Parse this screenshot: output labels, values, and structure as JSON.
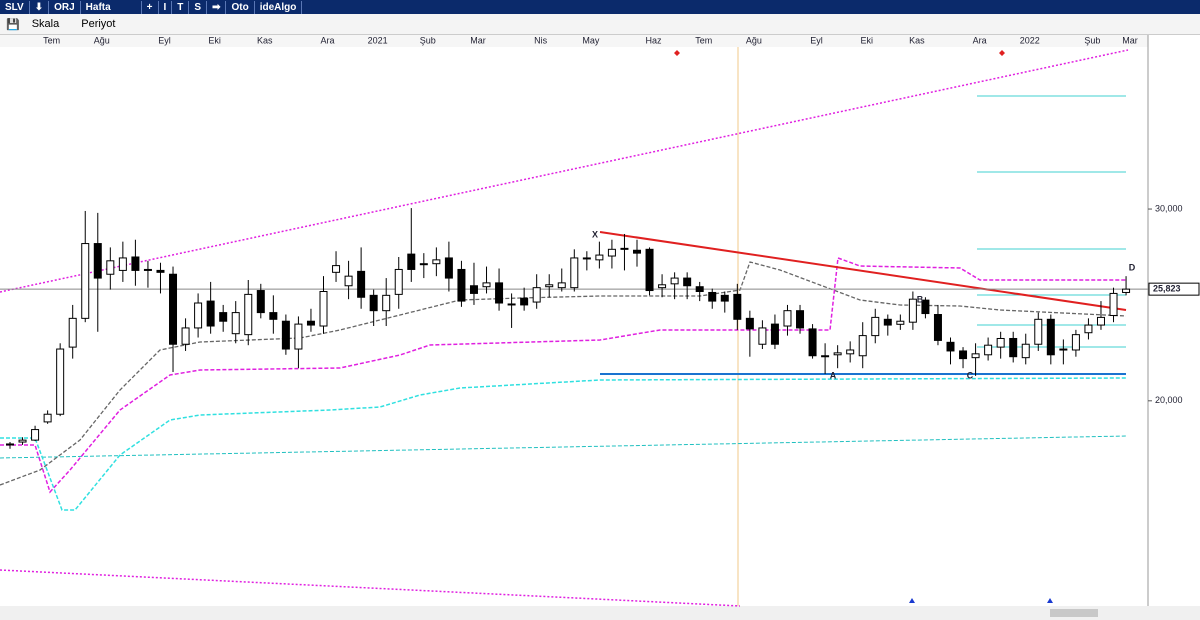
{
  "toolbar": {
    "symbol": "SLV",
    "mode": "ORJ",
    "period": "Hafta",
    "buttons": [
      "+",
      "I",
      "T",
      "S"
    ],
    "auto": "Oto",
    "brand": "ideAlgo"
  },
  "menu": [
    "Skala",
    "Periyot"
  ],
  "chart_data": {
    "type": "candlestick",
    "categories": [
      null,
      null,
      null,
      "Tem",
      null,
      null,
      null,
      "Ağu",
      null,
      null,
      null,
      null,
      "Eyl",
      null,
      null,
      null,
      "Eki",
      null,
      null,
      null,
      "Kas",
      null,
      null,
      null,
      null,
      "Ara",
      null,
      null,
      null,
      "2021",
      null,
      null,
      null,
      "Şub",
      null,
      null,
      null,
      "Mar",
      null,
      null,
      null,
      null,
      "Nis",
      null,
      null,
      null,
      "May",
      null,
      null,
      null,
      null,
      "Haz",
      null,
      null,
      null,
      "Tem",
      null,
      null,
      null,
      "Ağu",
      null,
      null,
      null,
      null,
      "Eyl",
      null,
      null,
      null,
      "Eki",
      null,
      null,
      null,
      "Kas",
      null,
      null,
      null,
      null,
      "Ara",
      null,
      null,
      null,
      "2022",
      null,
      null,
      null,
      null,
      "Şub",
      null,
      null,
      "Mar"
    ],
    "open": [
      17700,
      17850,
      17950,
      18900,
      19300,
      22800,
      24300,
      28200,
      26600,
      26800,
      27500,
      26850,
      26800,
      26600,
      22950,
      23800,
      25200,
      24600,
      23500,
      23450,
      25750,
      24600,
      24150,
      22700,
      24150,
      23900,
      26700,
      26000,
      26750,
      25500,
      24700,
      25550,
      27650,
      27150,
      27150,
      27450,
      26850,
      26000,
      25950,
      26150,
      25000,
      25350,
      25150,
      25950,
      25900,
      25900,
      27400,
      27350,
      27550,
      27900,
      27850,
      27900,
      25900,
      26100,
      26400,
      25950,
      25650,
      25500,
      25550,
      24300,
      22950,
      24000,
      23900,
      24700,
      23750,
      22350,
      22400,
      22450,
      22350,
      23400,
      24250,
      23990,
      24100,
      25250,
      24500,
      23050,
      22600,
      22250,
      22400,
      22800,
      23250,
      22250,
      22950,
      24250,
      22650,
      22650,
      23550,
      23950,
      24450,
      25650
    ],
    "high": [
      17850,
      18100,
      18700,
      19500,
      23000,
      25000,
      29900,
      29800,
      28000,
      28300,
      28400,
      27300,
      27200,
      27000,
      24300,
      25600,
      26200,
      25000,
      25200,
      26300,
      26100,
      25500,
      24500,
      24400,
      24800,
      26500,
      27800,
      27300,
      28000,
      25800,
      26400,
      27500,
      30050,
      27700,
      28000,
      28300,
      27300,
      27200,
      27000,
      26900,
      25600,
      25900,
      26600,
      26600,
      26900,
      27900,
      27800,
      28300,
      28400,
      28700,
      28400,
      28000,
      26600,
      26700,
      26700,
      26200,
      25850,
      25700,
      26100,
      24700,
      24200,
      24500,
      25000,
      25000,
      24000,
      23000,
      22900,
      23100,
      24100,
      24800,
      24500,
      24500,
      25700,
      25400,
      25000,
      23300,
      22800,
      23000,
      23300,
      23600,
      23600,
      23500,
      24600,
      24500,
      23200,
      23700,
      24300,
      25200,
      25900,
      26500
    ],
    "low": [
      17500,
      17700,
      17900,
      18800,
      19200,
      22200,
      24100,
      23600,
      25800,
      26200,
      26000,
      25900,
      25600,
      21500,
      22600,
      23300,
      23500,
      23600,
      23000,
      22900,
      24300,
      23500,
      22400,
      21700,
      23600,
      23500,
      26200,
      25300,
      24800,
      23900,
      23900,
      24800,
      26200,
      26400,
      26500,
      25700,
      24900,
      25000,
      25600,
      24700,
      23800,
      24700,
      24800,
      25400,
      25700,
      25700,
      26800,
      26900,
      26900,
      26800,
      27000,
      25500,
      25400,
      25300,
      25300,
      25200,
      24800,
      24600,
      23700,
      22300,
      22700,
      22700,
      23400,
      23500,
      22200,
      21400,
      21700,
      22000,
      21700,
      23000,
      23400,
      23700,
      23700,
      24300,
      22900,
      21900,
      21700,
      21300,
      22100,
      22200,
      22000,
      21900,
      22600,
      21900,
      21900,
      22300,
      23200,
      23700,
      24100,
      25500
    ],
    "close": [
      17750,
      17950,
      18500,
      19300,
      22700,
      24300,
      28200,
      26400,
      27300,
      27450,
      26800,
      26800,
      26700,
      22950,
      23800,
      25100,
      23900,
      24150,
      24600,
      25550,
      24600,
      24250,
      22700,
      24000,
      23950,
      25700,
      27050,
      26500,
      25400,
      24700,
      25500,
      26850,
      26850,
      27100,
      27350,
      26400,
      25200,
      25600,
      26150,
      25100,
      25050,
      25000,
      25900,
      26050,
      26150,
      27450,
      27450,
      27600,
      27900,
      27950,
      27700,
      25750,
      26050,
      26400,
      26000,
      25700,
      25200,
      25200,
      24250,
      23750,
      23800,
      22950,
      24700,
      23800,
      22350,
      22300,
      22500,
      22650,
      23400,
      24350,
      23950,
      24150,
      25300,
      24550,
      23150,
      22600,
      22200,
      22450,
      22900,
      23250,
      22300,
      22950,
      24250,
      22400,
      22700,
      23450,
      23950,
      24350,
      25600,
      25823
    ],
    "up_color": "#ffffff",
    "down_color": "#000000",
    "ylim": [
      9300,
      38450
    ],
    "yticks": [
      {
        "value": 20000,
        "label": "20,000"
      },
      {
        "value": 30000,
        "label": "30,000"
      }
    ],
    "last_price": {
      "value": 25823,
      "label": "25,823"
    },
    "pattern_labels": [
      "X",
      "A",
      "B",
      "C",
      "D"
    ]
  }
}
